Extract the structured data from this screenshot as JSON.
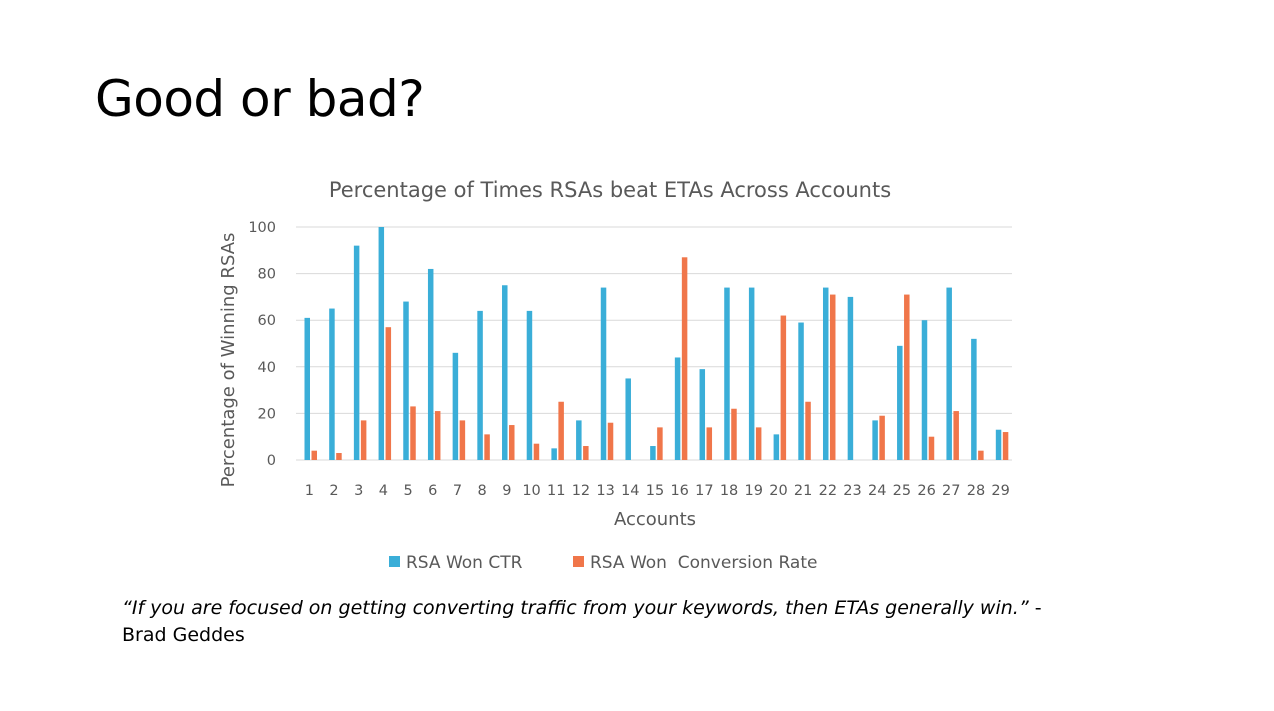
{
  "slide": {
    "title": "Good or bad?",
    "quote_text": "“If you are focused on getting converting traffic from your keywords, then ETAs generally win.”",
    "quote_dash": " -",
    "quote_author": "Brad Geddes"
  },
  "colors": {
    "series_ctr": "#3aaed8",
    "series_conv": "#f0764a",
    "grid": "#d9d9d9",
    "text": "#595959"
  },
  "chart_data": {
    "type": "bar",
    "title": "Percentage of Times RSAs beat ETAs Across Accounts",
    "xlabel": "Accounts",
    "ylabel": "Percentage of Winning RSAs",
    "ylim": [
      0,
      100
    ],
    "yticks": [
      "0",
      "20",
      "40",
      "60",
      "80",
      "100"
    ],
    "legend_position": "bottom",
    "grid": true,
    "categories": [
      "1",
      "2",
      "3",
      "4",
      "5",
      "6",
      "7",
      "8",
      "9",
      "10",
      "11",
      "12",
      "13",
      "14",
      "15",
      "16",
      "17",
      "18",
      "19",
      "20",
      "21",
      "22",
      "23",
      "24",
      "25",
      "26",
      "27",
      "28",
      "29"
    ],
    "series": [
      {
        "name": "RSA Won CTR",
        "values": [
          61,
          65,
          92,
          100,
          68,
          82,
          46,
          64,
          75,
          64,
          5,
          17,
          74,
          35,
          6,
          44,
          39,
          74,
          74,
          11,
          59,
          74,
          70,
          17,
          49,
          60,
          74,
          52,
          13
        ]
      },
      {
        "name": "RSA Won  Conversion Rate",
        "values": [
          4,
          3,
          17,
          57,
          23,
          21,
          17,
          11,
          15,
          7,
          25,
          6,
          16,
          0,
          14,
          87,
          14,
          22,
          14,
          62,
          25,
          71,
          0,
          19,
          71,
          10,
          21,
          4,
          12
        ]
      }
    ]
  }
}
